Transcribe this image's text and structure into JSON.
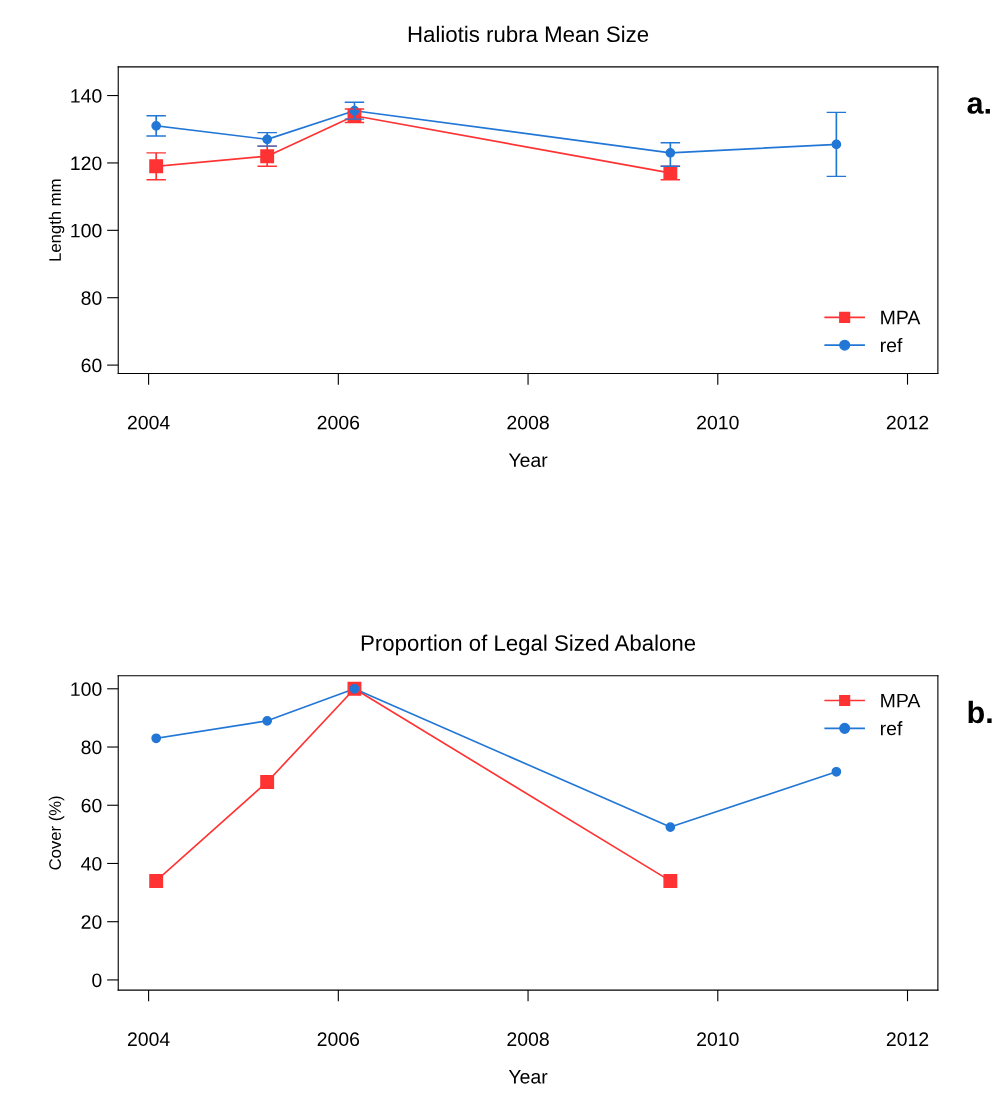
{
  "chart_data": [
    {
      "type": "line",
      "title": "Haliotis rubra Mean Size",
      "xlabel": "Year",
      "ylabel": "Length mm",
      "xlim": [
        2003.68,
        2012.32
      ],
      "xticks": [
        2004,
        2006,
        2008,
        2010,
        2012
      ],
      "ylim": [
        57.5,
        148.5
      ],
      "yticks": [
        60,
        80,
        100,
        120,
        140
      ],
      "grid": false,
      "legend": "bottom right",
      "annotations": [
        "a."
      ],
      "series": [
        {
          "name": "MPA",
          "color": "#ff3333",
          "marker": "square",
          "x": [
            2004.08,
            2005.25,
            2006.17,
            2009.5
          ],
          "values": [
            119,
            122,
            134,
            117
          ],
          "errors": [
            [
              115,
              123
            ],
            [
              119,
              125
            ],
            [
              132,
              136
            ],
            [
              115,
              119
            ]
          ]
        },
        {
          "name": "ref",
          "color": "#2277d6",
          "marker": "circle",
          "x": [
            2004.08,
            2005.25,
            2006.17,
            2009.5,
            2011.25
          ],
          "values": [
            131,
            127,
            135.5,
            123,
            125.5
          ],
          "errors": [
            [
              128,
              134
            ],
            [
              125,
              129
            ],
            [
              133,
              138
            ],
            [
              119,
              126
            ],
            [
              116,
              135
            ]
          ]
        }
      ]
    },
    {
      "type": "line",
      "title": "Proportion of Legal Sized Abalone",
      "xlabel": "Year",
      "ylabel": "Cover (%)",
      "xlim": [
        2003.68,
        2012.32
      ],
      "xticks": [
        2004,
        2006,
        2008,
        2010,
        2012
      ],
      "ylim": [
        -3.5,
        104.5
      ],
      "yticks": [
        0,
        20,
        40,
        60,
        80,
        100
      ],
      "grid": false,
      "legend": "top right",
      "annotations": [
        "b."
      ],
      "series": [
        {
          "name": "MPA",
          "color": "#ff3333",
          "marker": "square",
          "x": [
            2004.08,
            2005.25,
            2006.17,
            2009.5
          ],
          "values": [
            34,
            68,
            100,
            34
          ]
        },
        {
          "name": "ref",
          "color": "#2277d6",
          "marker": "circle",
          "x": [
            2004.08,
            2005.25,
            2006.17,
            2009.5,
            2011.25
          ],
          "values": [
            83,
            89,
            100,
            52.5,
            71.5
          ]
        }
      ]
    }
  ]
}
